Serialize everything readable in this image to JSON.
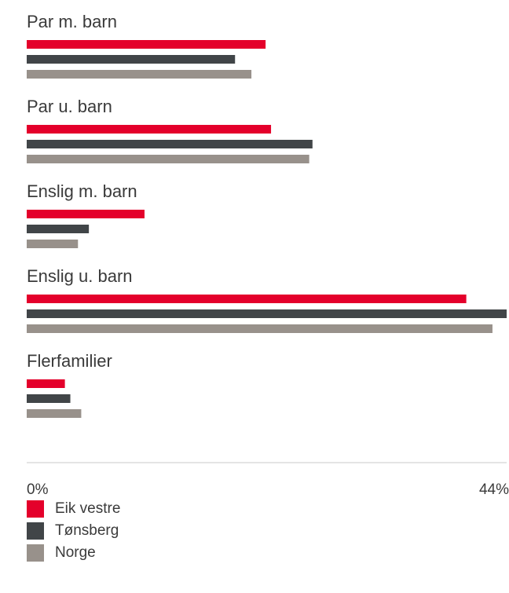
{
  "chart_data": {
    "type": "bar",
    "orientation": "horizontal",
    "categories": [
      "Par m. barn",
      "Par u. barn",
      "Enslig m. barn",
      "Enslig u. barn",
      "Flerfamilier"
    ],
    "series": [
      {
        "name": "Eik vestre",
        "color": "#e4002b",
        "values": [
          21.9,
          22.4,
          10.8,
          40.3,
          3.5
        ]
      },
      {
        "name": "Tønsberg",
        "color": "#414548",
        "values": [
          19.1,
          26.2,
          5.7,
          44.0,
          4.0
        ]
      },
      {
        "name": "Norge",
        "color": "#98918b",
        "values": [
          20.6,
          25.9,
          4.7,
          42.7,
          5.0
        ]
      }
    ],
    "xlim": [
      0,
      44
    ],
    "tick_labels": [
      "0%",
      "44%"
    ],
    "legend_position": "bottom-left",
    "grid": false
  }
}
